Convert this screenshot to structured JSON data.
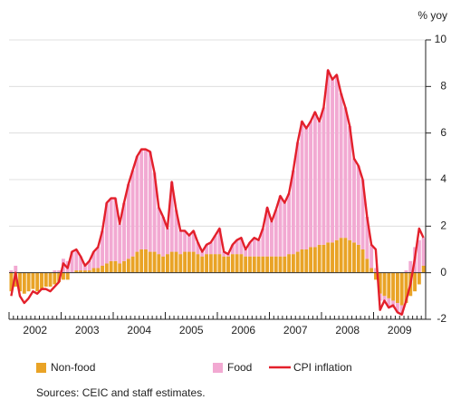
{
  "chart_data": {
    "type": "bar_line",
    "y_axis_label": "% yoy",
    "source": "Sources: CEIC and staff estimates.",
    "year_labels": [
      "2002",
      "2003",
      "2004",
      "2005",
      "2006",
      "2007",
      "2008",
      "2009"
    ],
    "ylim": [
      -2,
      10
    ],
    "yticks": [
      -2,
      0,
      2,
      4,
      6,
      8,
      10
    ],
    "grid": true,
    "series": [
      {
        "name": "Non-food",
        "color": "#e9a326",
        "kind": "bar",
        "values": [
          -0.8,
          -0.6,
          -0.8,
          -0.9,
          -0.8,
          -0.7,
          -0.8,
          -0.7,
          -0.6,
          -0.6,
          -0.5,
          -0.4,
          -0.3,
          -0.3,
          0.0,
          0.1,
          0.1,
          0.1,
          0.1,
          0.2,
          0.2,
          0.3,
          0.4,
          0.5,
          0.5,
          0.4,
          0.5,
          0.6,
          0.7,
          0.9,
          1.0,
          1.0,
          0.9,
          0.9,
          0.8,
          0.7,
          0.8,
          0.9,
          0.9,
          0.8,
          0.9,
          0.9,
          0.9,
          0.8,
          0.7,
          0.8,
          0.8,
          0.8,
          0.8,
          0.7,
          0.7,
          0.8,
          0.8,
          0.8,
          0.7,
          0.7,
          0.7,
          0.7,
          0.7,
          0.7,
          0.7,
          0.7,
          0.7,
          0.7,
          0.8,
          0.8,
          0.9,
          1.0,
          1.0,
          1.1,
          1.1,
          1.2,
          1.2,
          1.3,
          1.3,
          1.4,
          1.5,
          1.5,
          1.4,
          1.3,
          1.2,
          1.0,
          0.6,
          0.2,
          -0.3,
          -0.9,
          -1.0,
          -1.1,
          -1.2,
          -1.3,
          -1.4,
          -1.3,
          -1.0,
          -0.8,
          -0.5,
          0.3
        ]
      },
      {
        "name": "Food",
        "color": "#f2a9d2",
        "kind": "bar",
        "values": [
          0.1,
          0.3,
          0.0,
          0.0,
          0.0,
          0.0,
          0.0,
          0.0,
          0.0,
          0.0,
          0.1,
          0.1,
          0.6,
          0.5,
          0.9,
          0.9,
          0.6,
          0.2,
          0.4,
          0.7,
          0.9,
          1.5,
          2.6,
          2.7,
          2.7,
          1.7,
          2.5,
          3.2,
          3.7,
          4.1,
          4.3,
          4.3,
          4.3,
          3.4,
          2.0,
          1.7,
          1.1,
          3.0,
          1.8,
          1.0,
          0.9,
          0.7,
          0.9,
          0.5,
          0.2,
          0.4,
          0.5,
          0.8,
          1.1,
          0.2,
          0.1,
          0.4,
          0.6,
          0.7,
          0.3,
          0.6,
          0.8,
          0.7,
          1.2,
          2.1,
          1.5,
          2.0,
          2.6,
          2.3,
          2.6,
          3.6,
          4.7,
          5.5,
          5.2,
          5.4,
          5.8,
          5.3,
          5.9,
          7.4,
          7.0,
          7.1,
          6.2,
          5.6,
          4.9,
          3.6,
          3.4,
          3.0,
          1.8,
          1.0,
          0.2,
          -0.3,
          -0.2,
          -0.4,
          -0.3,
          -0.4,
          -0.4,
          0.1,
          0.5,
          1.1,
          1.4,
          1.2
        ]
      },
      {
        "name": "CPI inflation",
        "color": "#e3202b",
        "kind": "line",
        "values": [
          -1.0,
          0.0,
          -1.0,
          -1.3,
          -1.1,
          -0.8,
          -0.9,
          -0.7,
          -0.7,
          -0.8,
          -0.6,
          -0.4,
          0.4,
          0.2,
          0.9,
          1.0,
          0.7,
          0.3,
          0.5,
          0.9,
          1.1,
          1.8,
          3.0,
          3.2,
          3.2,
          2.1,
          3.0,
          3.8,
          4.4,
          5.0,
          5.3,
          5.3,
          5.2,
          4.3,
          2.8,
          2.4,
          1.9,
          3.9,
          2.7,
          1.8,
          1.8,
          1.6,
          1.8,
          1.3,
          0.9,
          1.2,
          1.3,
          1.6,
          1.9,
          0.9,
          0.8,
          1.2,
          1.4,
          1.5,
          1.0,
          1.3,
          1.5,
          1.4,
          1.9,
          2.8,
          2.2,
          2.7,
          3.3,
          3.0,
          3.4,
          4.4,
          5.6,
          6.5,
          6.2,
          6.5,
          6.9,
          6.5,
          7.1,
          8.7,
          8.3,
          8.5,
          7.7,
          7.1,
          6.3,
          4.9,
          4.6,
          4.0,
          2.4,
          1.2,
          1.0,
          -1.6,
          -1.2,
          -1.5,
          -1.4,
          -1.7,
          -1.8,
          -1.2,
          -0.5,
          0.6,
          1.9,
          1.5
        ]
      }
    ]
  }
}
